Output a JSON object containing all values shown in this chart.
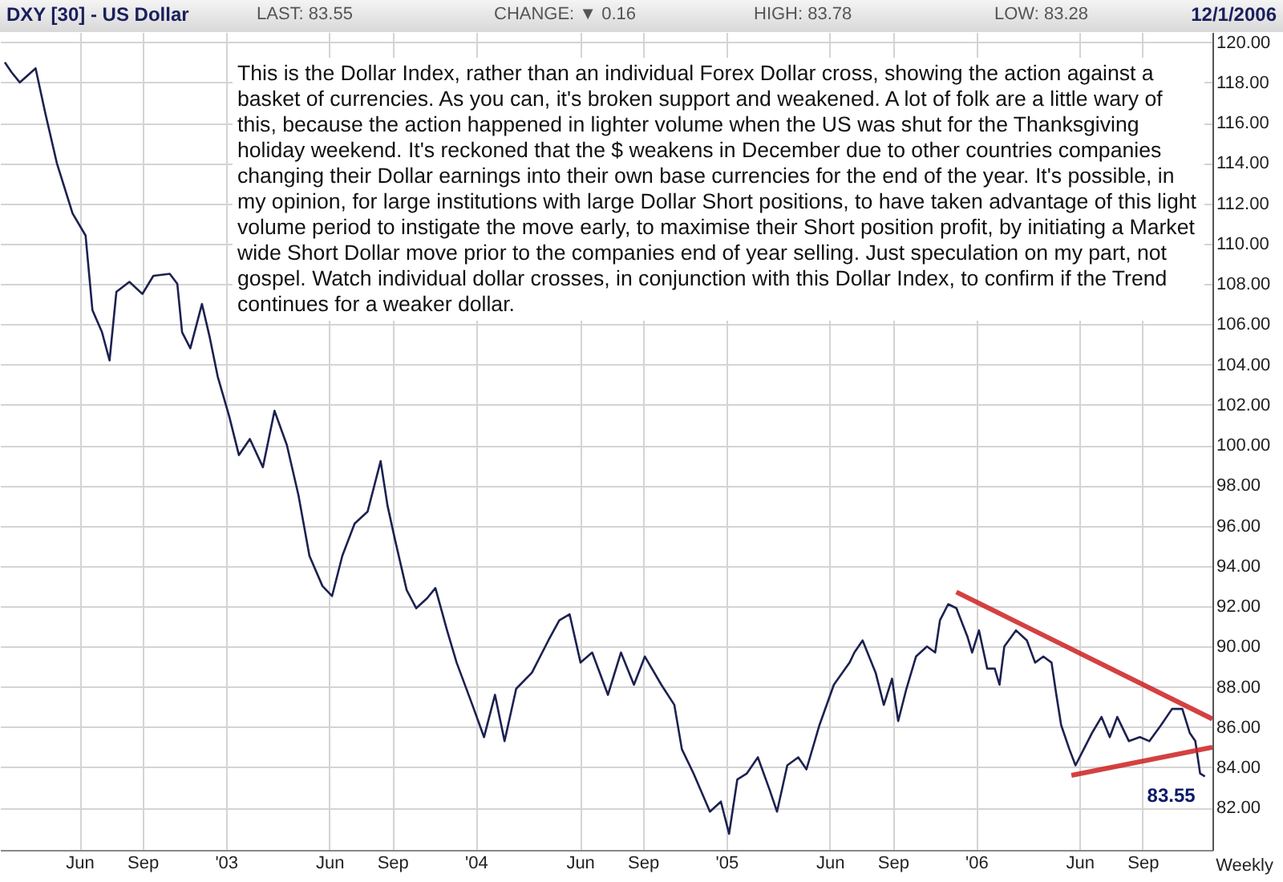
{
  "chart_data": {
    "type": "line",
    "title": "DXY [30] - US Dollar",
    "annotations": [
      "LAST: 83.55",
      "CHANGE: ▼ 0.16",
      "HIGH: 83.78",
      "LOW: 83.28",
      "12/1/2006",
      "This is the Dollar Index, rather than an individual Forex Dollar cross, showing the action against a basket of currencies. As you can, it's broken support and weakened. A lot of folk are a little wary of this, because the action happened in lighter volume when the US was shut for the Thanksgiving holiday weekend. It's reckoned that the $ weakens in December due to other countries companies changing their Dollar earnings into their own base currencies for the end of the year. It's possible, in my opinion, for large institutions with large Dollar Short positions, to have taken advantage of this light volume period to instigate the move early, to maximise their Short position profit, by initiating a Market wide Short Dollar move prior to the companies end of year selling. Just speculation on my part, not gospel. Watch individual dollar crosses, in conjunction with this Dollar Index, to confirm if the Trend continues for a weaker dollar.",
      "Weekly",
      {
        "text": "83.55",
        "x": "2006-12-01",
        "y": 83.55
      }
    ],
    "xlim": [
      "2002-02-05",
      "2006-12-12"
    ],
    "xticks": [
      {
        "value": "2002-06-01",
        "label": "Jun"
      },
      {
        "value": "2002-09-01",
        "label": "Sep"
      },
      {
        "value": "2003-01-01",
        "label": "'03"
      },
      {
        "value": "2003-06-01",
        "label": "Jun"
      },
      {
        "value": "2003-09-01",
        "label": "Sep"
      },
      {
        "value": "2004-01-01",
        "label": "'04"
      },
      {
        "value": "2004-06-01",
        "label": "Jun"
      },
      {
        "value": "2004-09-01",
        "label": "Sep"
      },
      {
        "value": "2005-01-01",
        "label": "'05"
      },
      {
        "value": "2005-06-01",
        "label": "Jun"
      },
      {
        "value": "2005-09-01",
        "label": "Sep"
      },
      {
        "value": "2006-01-01",
        "label": "'06"
      },
      {
        "value": "2006-06-01",
        "label": "Jun"
      },
      {
        "value": "2006-09-01",
        "label": "Sep"
      }
    ],
    "ylim": [
      79.9,
      120.5
    ],
    "yticks": [
      {
        "value": 82,
        "label": "82.00"
      },
      {
        "value": 84,
        "label": "84.00"
      },
      {
        "value": 86,
        "label": "86.00"
      },
      {
        "value": 88,
        "label": "88.00"
      },
      {
        "value": 90,
        "label": "90.00"
      },
      {
        "value": 92,
        "label": "92.00"
      },
      {
        "value": 94,
        "label": "94.00"
      },
      {
        "value": 96,
        "label": "96.00"
      },
      {
        "value": 98,
        "label": "98.00"
      },
      {
        "value": 100,
        "label": "100.00"
      },
      {
        "value": 102,
        "label": "102.00"
      },
      {
        "value": 104,
        "label": "104.00"
      },
      {
        "value": 106,
        "label": "106.00"
      },
      {
        "value": 108,
        "label": "108.00"
      },
      {
        "value": 110,
        "label": "110.00"
      },
      {
        "value": 112,
        "label": "112.00"
      },
      {
        "value": 114,
        "label": "114.00"
      },
      {
        "value": 116,
        "label": "116.00"
      },
      {
        "value": 118,
        "label": "118.00"
      },
      {
        "value": 120,
        "label": "120.00"
      }
    ],
    "grid": true,
    "series": [
      {
        "color": "#1c2150",
        "x": [
          "2002-02-12",
          "2002-02-22",
          "2002-03-06",
          "2002-03-29",
          "2002-04-12",
          "2002-04-29",
          "2002-05-22",
          "2002-06-10",
          "2002-06-20",
          "2002-07-04",
          "2002-07-15",
          "2002-07-25",
          "2002-08-13",
          "2002-09-01",
          "2002-09-17",
          "2002-10-11",
          "2002-10-22",
          "2002-10-29",
          "2002-11-10",
          "2002-11-27",
          "2002-12-08",
          "2002-12-20",
          "2003-01-06",
          "2003-01-20",
          "2003-02-05",
          "2003-02-24",
          "2003-03-13",
          "2003-03-31",
          "2003-04-17",
          "2003-05-03",
          "2003-05-22",
          "2003-06-05",
          "2003-06-20",
          "2003-07-08",
          "2003-07-27",
          "2003-08-15",
          "2003-08-25",
          "2003-09-05",
          "2003-09-22",
          "2003-10-06",
          "2003-10-22",
          "2003-11-03",
          "2003-11-20",
          "2003-12-04",
          "2003-12-27",
          "2004-01-13",
          "2004-01-29",
          "2004-02-12",
          "2004-02-29",
          "2004-03-23",
          "2004-04-16",
          "2004-05-02",
          "2004-05-17",
          "2004-06-02",
          "2004-06-19",
          "2004-07-12",
          "2004-07-31",
          "2004-08-19",
          "2004-09-04",
          "2004-09-28",
          "2004-10-17",
          "2004-10-28",
          "2004-11-14",
          "2004-12-08",
          "2004-12-24",
          "2005-01-05",
          "2005-01-17",
          "2005-01-31",
          "2005-02-16",
          "2005-03-05",
          "2005-03-16",
          "2005-03-31",
          "2005-04-16",
          "2005-04-28",
          "2005-05-17",
          "2005-06-07",
          "2005-06-30",
          "2005-07-07",
          "2005-07-19",
          "2005-08-07",
          "2005-08-19",
          "2005-08-31",
          "2005-09-09",
          "2005-09-21",
          "2005-10-05",
          "2005-10-21",
          "2005-11-02",
          "2005-11-09",
          "2005-11-21",
          "2005-12-03",
          "2005-12-19",
          "2005-12-26",
          "2006-01-05",
          "2006-01-17",
          "2006-01-28",
          "2006-02-04",
          "2006-02-11",
          "2006-02-28",
          "2006-03-16",
          "2006-03-28",
          "2006-04-09",
          "2006-04-21",
          "2006-04-28",
          "2006-05-05",
          "2006-05-17",
          "2006-05-26",
          "2006-06-07",
          "2006-06-19",
          "2006-07-03",
          "2006-07-15",
          "2006-07-26",
          "2006-08-12",
          "2006-08-28",
          "2006-09-11",
          "2006-09-28",
          "2006-10-14",
          "2006-10-29",
          "2006-11-09",
          "2006-11-17",
          "2006-11-24",
          "2006-12-01"
        ],
        "values": [
          119.0,
          118.5,
          118.0,
          118.7,
          116.5,
          114.0,
          111.5,
          110.4,
          106.7,
          105.6,
          104.2,
          107.6,
          108.1,
          107.5,
          108.4,
          108.5,
          108.0,
          105.6,
          104.8,
          107.0,
          105.4,
          103.4,
          101.4,
          99.5,
          100.3,
          98.9,
          101.7,
          100.0,
          97.5,
          94.5,
          93.0,
          92.5,
          94.5,
          96.1,
          96.7,
          99.2,
          97.0,
          95.3,
          92.8,
          91.9,
          92.4,
          92.9,
          90.8,
          89.2,
          87.1,
          85.5,
          87.6,
          85.3,
          87.9,
          88.7,
          90.3,
          91.3,
          91.6,
          89.2,
          89.7,
          87.6,
          89.7,
          88.1,
          89.5,
          88.1,
          87.1,
          84.9,
          83.7,
          81.8,
          82.3,
          80.7,
          83.4,
          83.7,
          84.5,
          82.9,
          81.8,
          84.1,
          84.5,
          83.9,
          86.1,
          88.1,
          89.2,
          89.7,
          90.3,
          88.7,
          87.1,
          88.4,
          86.3,
          87.9,
          89.5,
          90.0,
          89.7,
          91.3,
          92.1,
          91.9,
          90.5,
          89.7,
          90.8,
          88.9,
          88.9,
          88.1,
          90.0,
          90.8,
          90.3,
          89.2,
          89.5,
          89.2,
          87.6,
          86.1,
          84.9,
          84.1,
          84.9,
          85.7,
          86.5,
          85.5,
          86.5,
          85.3,
          85.5,
          85.3,
          86.1,
          86.9,
          86.9,
          85.7,
          85.3,
          83.7,
          83.55
        ]
      },
      {
        "type": "line",
        "color": "#cc2020",
        "x": [
          "2005-12-03",
          "2006-12-12"
        ],
        "values": [
          92.7,
          86.4
        ]
      },
      {
        "type": "line",
        "color": "#cc2020",
        "x": [
          "2006-05-20",
          "2006-12-12"
        ],
        "values": [
          83.6,
          85.0
        ]
      }
    ]
  }
}
